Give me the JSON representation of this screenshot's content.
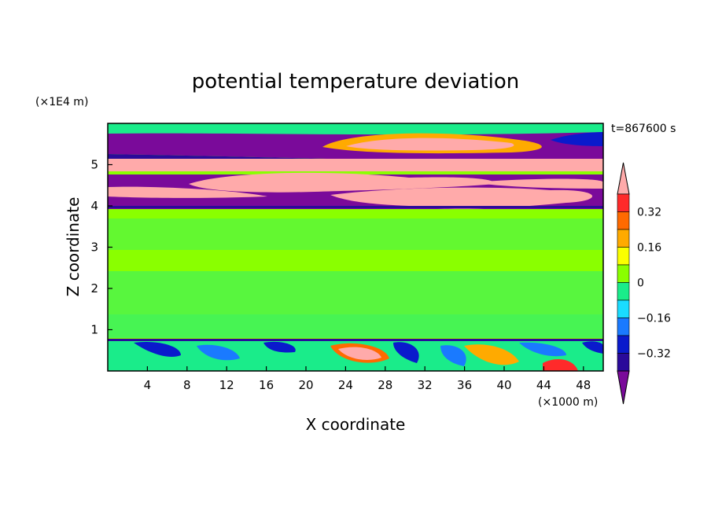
{
  "chart_data": {
    "type": "heatmap",
    "title": "potential temperature deviation",
    "xlabel": "X coordinate",
    "ylabel": "Z coordinate",
    "x_unit": "(×1000 m)",
    "y_unit": "(×1E4 m)",
    "time_label": "t=867600 s",
    "xlim": [
      0,
      50
    ],
    "ylim": [
      0,
      6
    ],
    "x_ticks": [
      "4",
      "8",
      "12",
      "16",
      "20",
      "24",
      "28",
      "32",
      "36",
      "40",
      "44",
      "48"
    ],
    "y_ticks": [
      "1",
      "2",
      "3",
      "4",
      "5"
    ],
    "colorbar": {
      "labels": [
        "0.32",
        "0.16",
        "0",
        "−0.16",
        "−0.32"
      ],
      "colors": [
        "#7a0a9a",
        "#2a0a9a",
        "#0a1acc",
        "#1a7aff",
        "#1adcff",
        "#1aec8a",
        "#8aff00",
        "#faff00",
        "#ffaa00",
        "#ff6a00",
        "#ff2a2a",
        "#ffaaaa"
      ]
    },
    "field_description_levels": {
      "background": "#8aff00",
      "lower_band": "#1aec8a",
      "warm_anomaly": "#ffaaaa",
      "cold_anomaly": "#7a0a9a"
    }
  }
}
